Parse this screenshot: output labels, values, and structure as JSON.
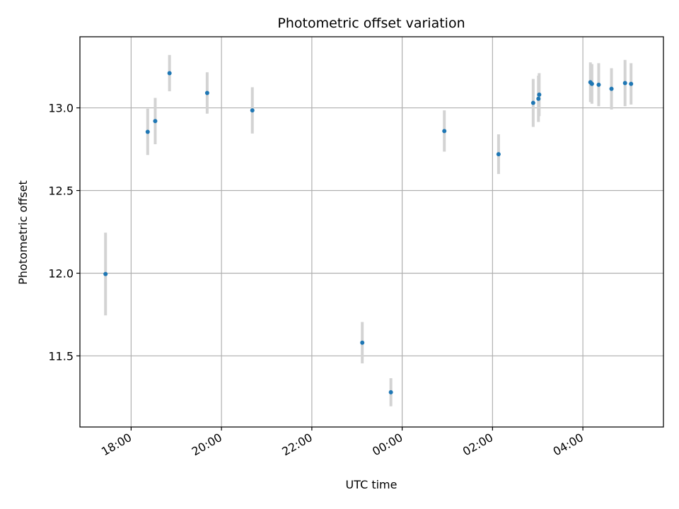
{
  "chart_data": {
    "type": "scatter",
    "title": "Photometric offset variation",
    "xlabel": "UTC time",
    "ylabel": "Photometric offset",
    "grid": true,
    "legend": "none",
    "x_unit": "UTC date-time",
    "xlim": [
      "2020-01-01 16:52",
      "2020-01-02 05:47"
    ],
    "ylim": [
      11.07,
      13.43
    ],
    "x_ticks": [
      {
        "t": "2020-01-01 18:00",
        "label": "18:00"
      },
      {
        "t": "2020-01-01 20:00",
        "label": "20:00"
      },
      {
        "t": "2020-01-01 22:00",
        "label": "22:00"
      },
      {
        "t": "2020-01-02 00:00",
        "label": "00:00"
      },
      {
        "t": "2020-01-02 02:00",
        "label": "02:00"
      },
      {
        "t": "2020-01-02 04:00",
        "label": "04:00"
      }
    ],
    "y_ticks": [
      {
        "v": 11.5,
        "label": "11.5"
      },
      {
        "v": 12.0,
        "label": "12.0"
      },
      {
        "v": 12.5,
        "label": "12.5"
      },
      {
        "v": 13.0,
        "label": "13.0"
      }
    ],
    "colors": {
      "point": "#1f77b4",
      "errorbar": "#d3d3d3",
      "grid": "#b0b0b0"
    },
    "points": [
      {
        "t": "2020-01-01 17:26",
        "y": 11.995,
        "err": 0.25
      },
      {
        "t": "2020-01-01 18:22",
        "y": 12.855,
        "err": 0.14
      },
      {
        "t": "2020-01-01 18:32",
        "y": 12.92,
        "err": 0.14
      },
      {
        "t": "2020-01-01 18:51",
        "y": 13.21,
        "err": 0.11
      },
      {
        "t": "2020-01-01 19:41",
        "y": 13.09,
        "err": 0.125
      },
      {
        "t": "2020-01-01 20:41",
        "y": 12.985,
        "err": 0.14
      },
      {
        "t": "2020-01-01 23:07",
        "y": 11.58,
        "err": 0.125
      },
      {
        "t": "2020-01-01 23:45",
        "y": 11.28,
        "err": 0.085
      },
      {
        "t": "2020-01-02 00:56",
        "y": 12.86,
        "err": 0.125
      },
      {
        "t": "2020-01-02 02:08",
        "y": 12.72,
        "err": 0.12
      },
      {
        "t": "2020-01-02 02:54",
        "y": 13.03,
        "err": 0.145
      },
      {
        "t": "2020-01-02 03:01",
        "y": 13.055,
        "err": 0.14
      },
      {
        "t": "2020-01-02 03:02",
        "y": 13.08,
        "err": 0.13
      },
      {
        "t": "2020-01-02 04:10",
        "y": 13.155,
        "err": 0.12
      },
      {
        "t": "2020-01-02 04:12",
        "y": 13.145,
        "err": 0.12
      },
      {
        "t": "2020-01-02 04:21",
        "y": 13.14,
        "err": 0.13
      },
      {
        "t": "2020-01-02 04:38",
        "y": 13.115,
        "err": 0.125
      },
      {
        "t": "2020-01-02 04:56",
        "y": 13.15,
        "err": 0.14
      },
      {
        "t": "2020-01-02 05:04",
        "y": 13.145,
        "err": 0.125
      }
    ]
  }
}
